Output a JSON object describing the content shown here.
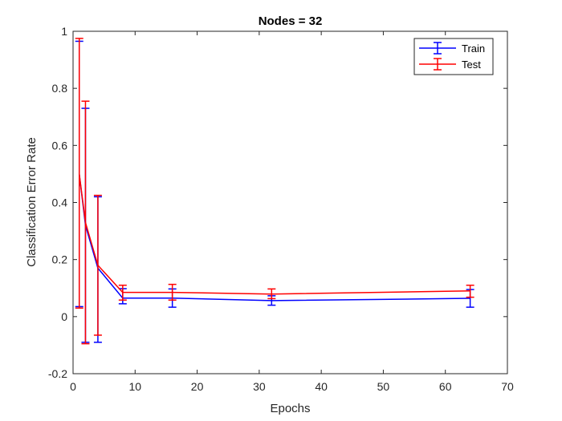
{
  "chart_data": {
    "type": "line",
    "title": "Nodes = 32",
    "xlabel": "Epochs",
    "ylabel": "Classification Error Rate",
    "xlim": [
      0,
      70
    ],
    "ylim": [
      -0.2,
      1
    ],
    "xticks": [
      "0",
      "10",
      "20",
      "30",
      "40",
      "50",
      "60",
      "70"
    ],
    "yticks": [
      "-0.2",
      "0",
      "0.2",
      "0.4",
      "0.6",
      "0.8",
      "1"
    ],
    "x": [
      1,
      2,
      4,
      8,
      16,
      32,
      64
    ],
    "error_bars": true,
    "grid": false,
    "legend_position": "top-right",
    "series": [
      {
        "name": "Train",
        "color": "#0000ff",
        "values": [
          0.5,
          0.32,
          0.17,
          0.065,
          0.065,
          0.056,
          0.064
        ],
        "lower": [
          0.035,
          -0.09,
          -0.09,
          0.045,
          0.033,
          0.04,
          0.033
        ],
        "upper": [
          0.965,
          0.73,
          0.42,
          0.098,
          0.097,
          0.073,
          0.095
        ]
      },
      {
        "name": "Test",
        "color": "#ff0000",
        "values": [
          0.5,
          0.33,
          0.18,
          0.085,
          0.085,
          0.079,
          0.09
        ],
        "lower": [
          0.03,
          -0.095,
          -0.065,
          0.058,
          0.058,
          0.063,
          0.068
        ],
        "upper": [
          0.975,
          0.755,
          0.425,
          0.11,
          0.113,
          0.097,
          0.11
        ]
      }
    ]
  }
}
